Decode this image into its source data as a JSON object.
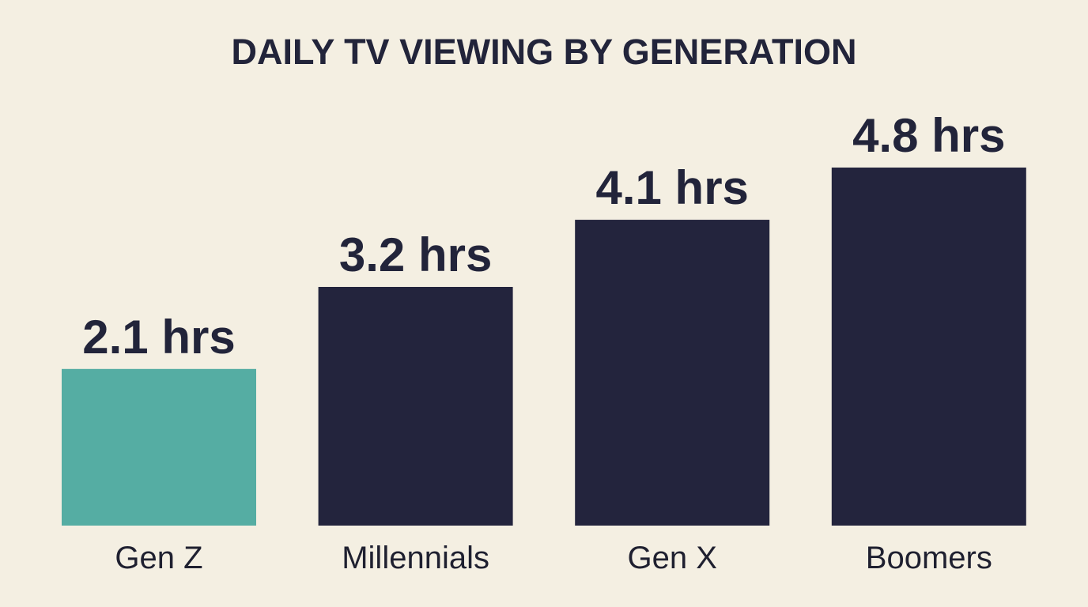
{
  "chart_data": {
    "type": "bar",
    "title": "DAILY TV VIEWING BY GENERATION",
    "categories": [
      "Gen Z",
      "Millennials",
      "Gen X",
      "Boomers"
    ],
    "values": [
      2.1,
      3.2,
      4.1,
      4.8
    ],
    "data_labels": [
      "2.1 hrs",
      "3.2 hrs",
      "4.1 hrs",
      "4.8 hrs"
    ],
    "unit": "hrs",
    "xlabel": "",
    "ylabel": "",
    "ylim": [
      0,
      4.8
    ],
    "grid": false,
    "axes_visible": false,
    "colors": [
      "#55ada3",
      "#23243d",
      "#23243d",
      "#23243d"
    ],
    "background": "#f4efe2"
  }
}
